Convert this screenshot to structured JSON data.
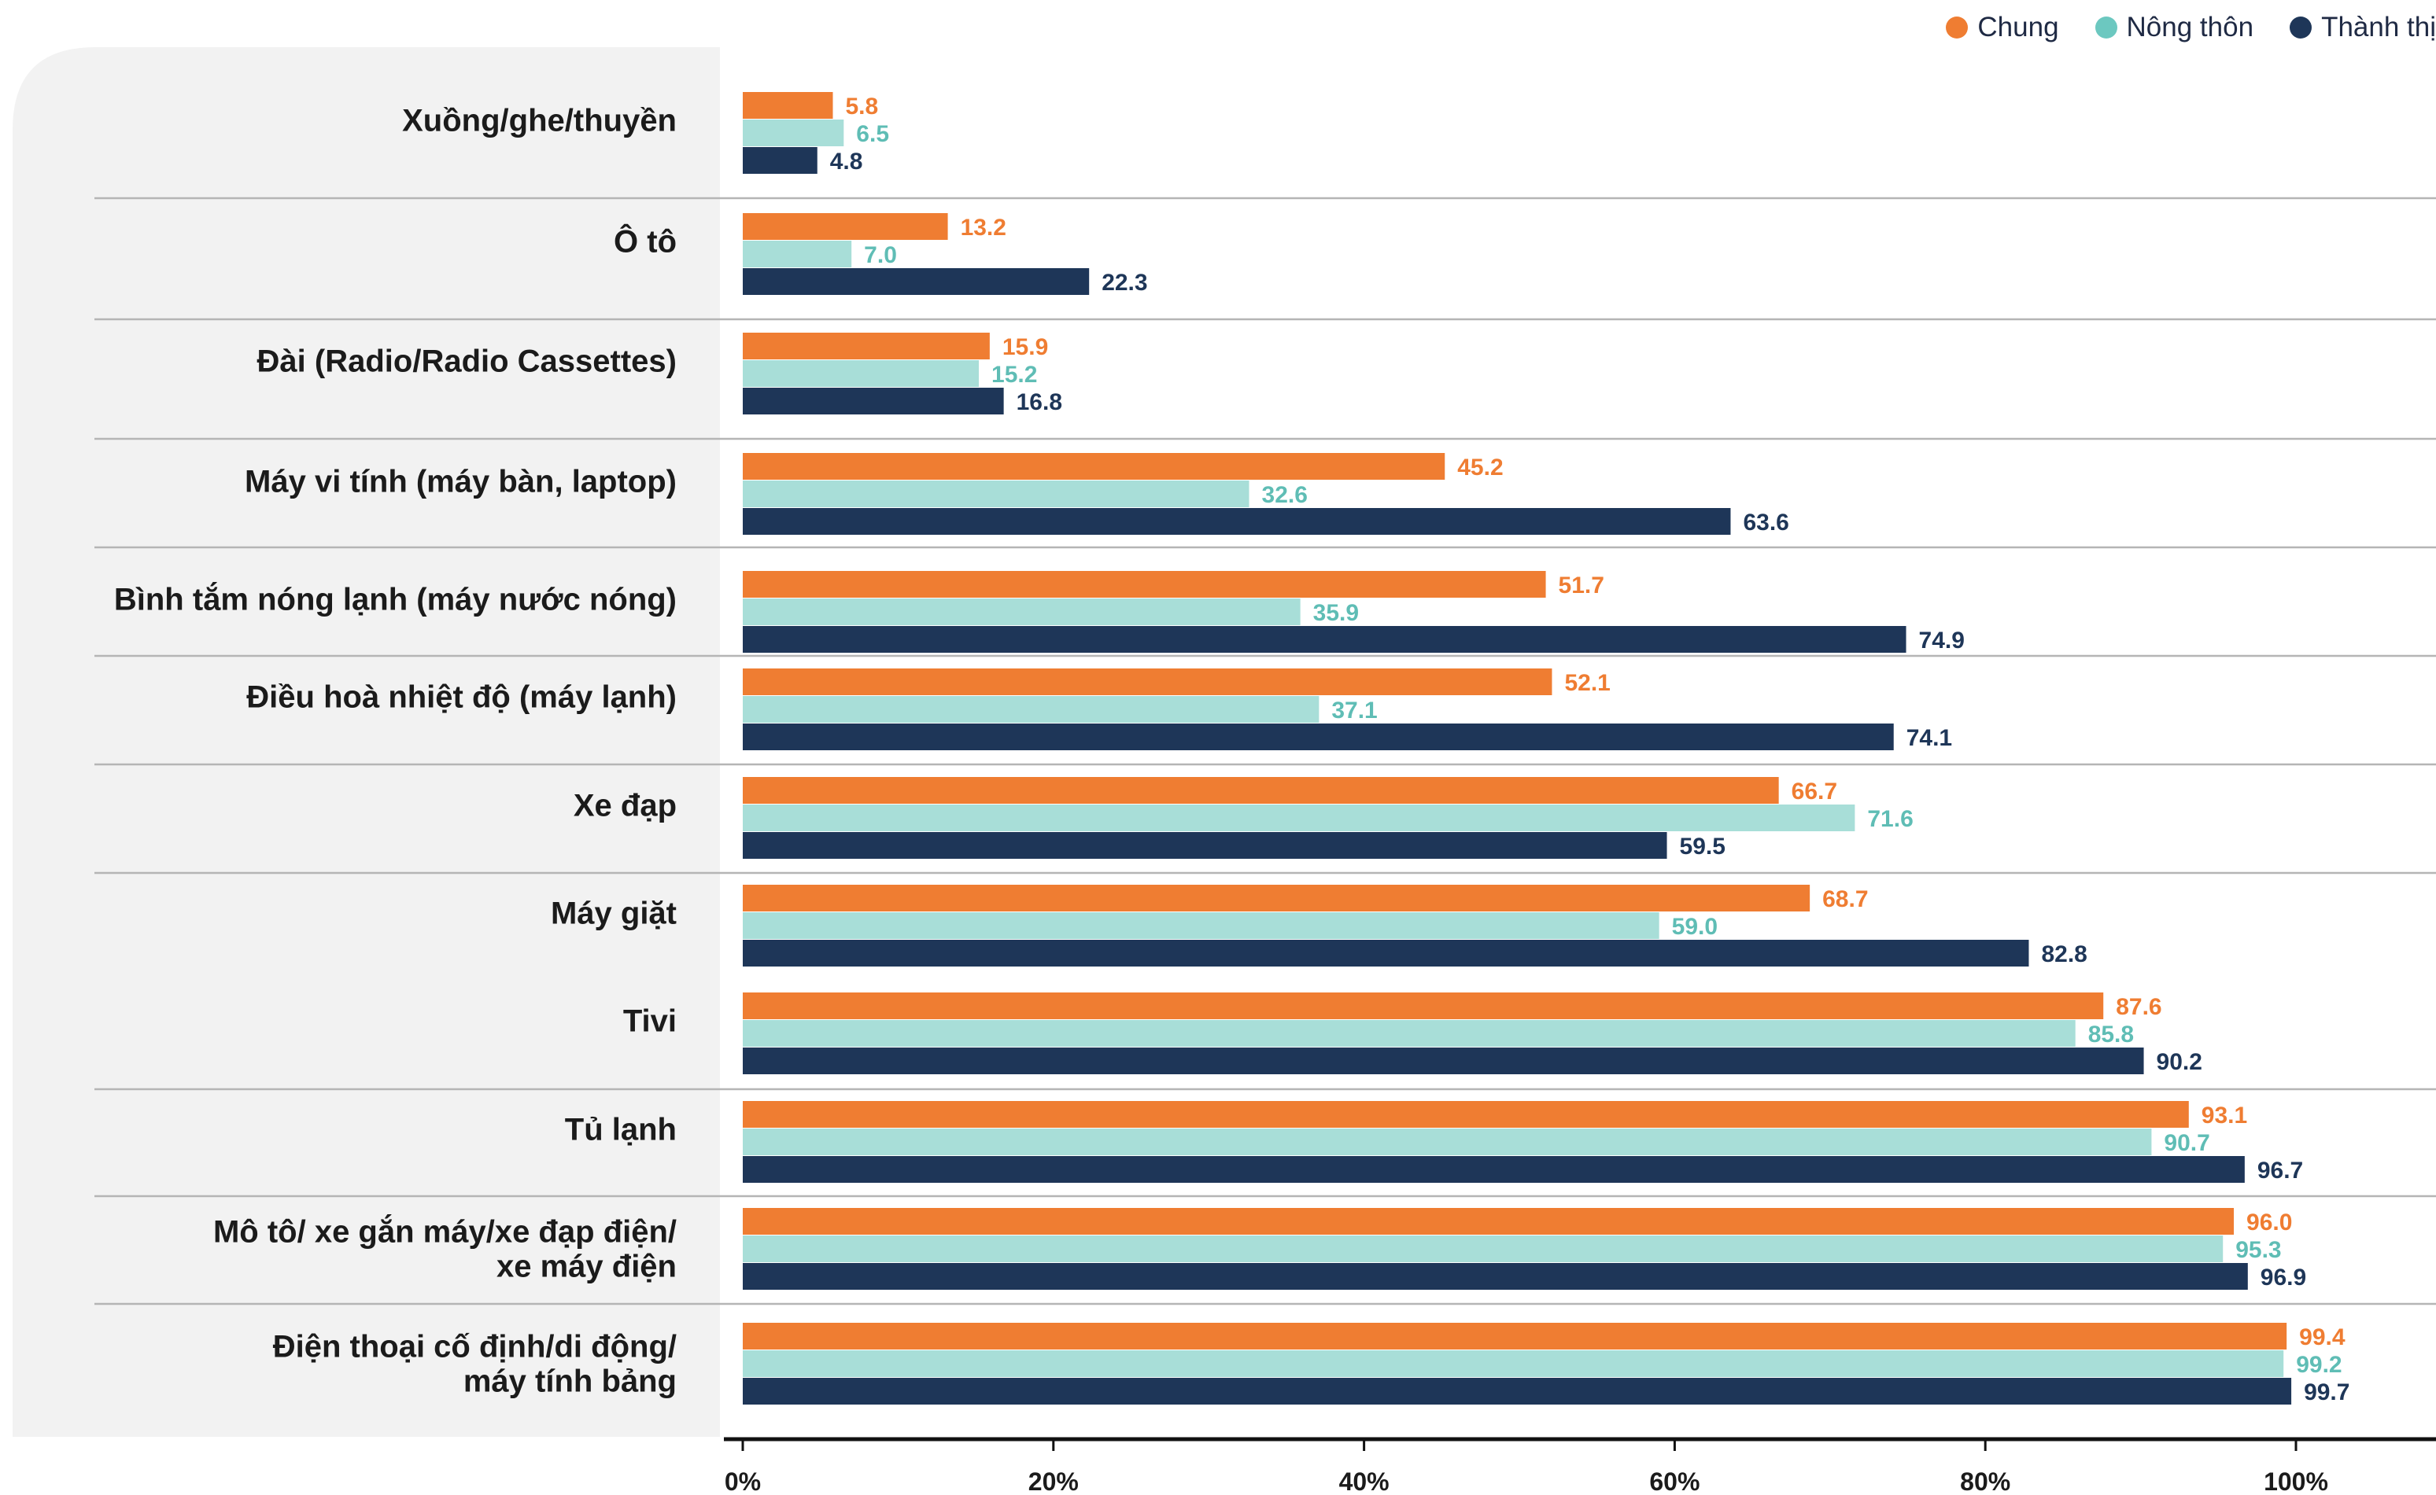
{
  "colors": {
    "chung": "#ef7d32",
    "nong_thon": "#a8ded8",
    "thanh_thi": "#1e3658",
    "panel": "#f2f2f2",
    "rule": "#b5b5b5",
    "axis": "#111111"
  },
  "legend": [
    {
      "label": "Chung",
      "color": "#ef7d32"
    },
    {
      "label": "Nông thôn",
      "color": "#6cc8c0"
    },
    {
      "label": "Thành thị",
      "color": "#1e3658"
    }
  ],
  "chart_data": {
    "type": "bar",
    "orientation": "horizontal",
    "categories": [
      [
        "Xuồng/ghe/thuyền"
      ],
      [
        "Ô tô"
      ],
      [
        "Đài (Radio/Radio Cassettes)"
      ],
      [
        "Máy vi tính (máy bàn, laptop)"
      ],
      [
        "Bình tắm nóng lạnh (máy nước nóng)"
      ],
      [
        "Điều hoà nhiệt độ (máy lạnh)"
      ],
      [
        "Xe đạp"
      ],
      [
        "Máy giặt"
      ],
      [
        "Tivi"
      ],
      [
        "Tủ lạnh"
      ],
      [
        "Mô tô/ xe gắn máy/xe đạp điện/",
        "xe máy điện"
      ],
      [
        "Điện thoại cố định/di động/",
        "máy tính bảng"
      ]
    ],
    "series": [
      {
        "name": "Chung",
        "color": "#ef7d32",
        "label_color": "#ef7d32",
        "values": [
          5.8,
          13.2,
          15.9,
          45.2,
          51.7,
          52.1,
          66.7,
          68.7,
          87.6,
          93.1,
          96.0,
          99.4
        ]
      },
      {
        "name": "Nông thôn",
        "color": "#a8ded8",
        "label_color": "#5fbdb5",
        "values": [
          6.5,
          7.0,
          15.2,
          32.6,
          35.9,
          37.1,
          71.6,
          59.0,
          85.8,
          90.7,
          95.3,
          99.2
        ]
      },
      {
        "name": "Thành thị",
        "color": "#1e3658",
        "label_color": "#1e3658",
        "values": [
          4.8,
          22.3,
          16.8,
          63.6,
          74.9,
          74.1,
          59.5,
          82.8,
          90.2,
          96.7,
          96.9,
          99.7
        ]
      }
    ],
    "xlim": [
      0,
      100
    ],
    "xticks": [
      "0%",
      "20%",
      "40%",
      "60%",
      "80%",
      "100%"
    ],
    "grid": false,
    "legend_position": "top-right"
  }
}
